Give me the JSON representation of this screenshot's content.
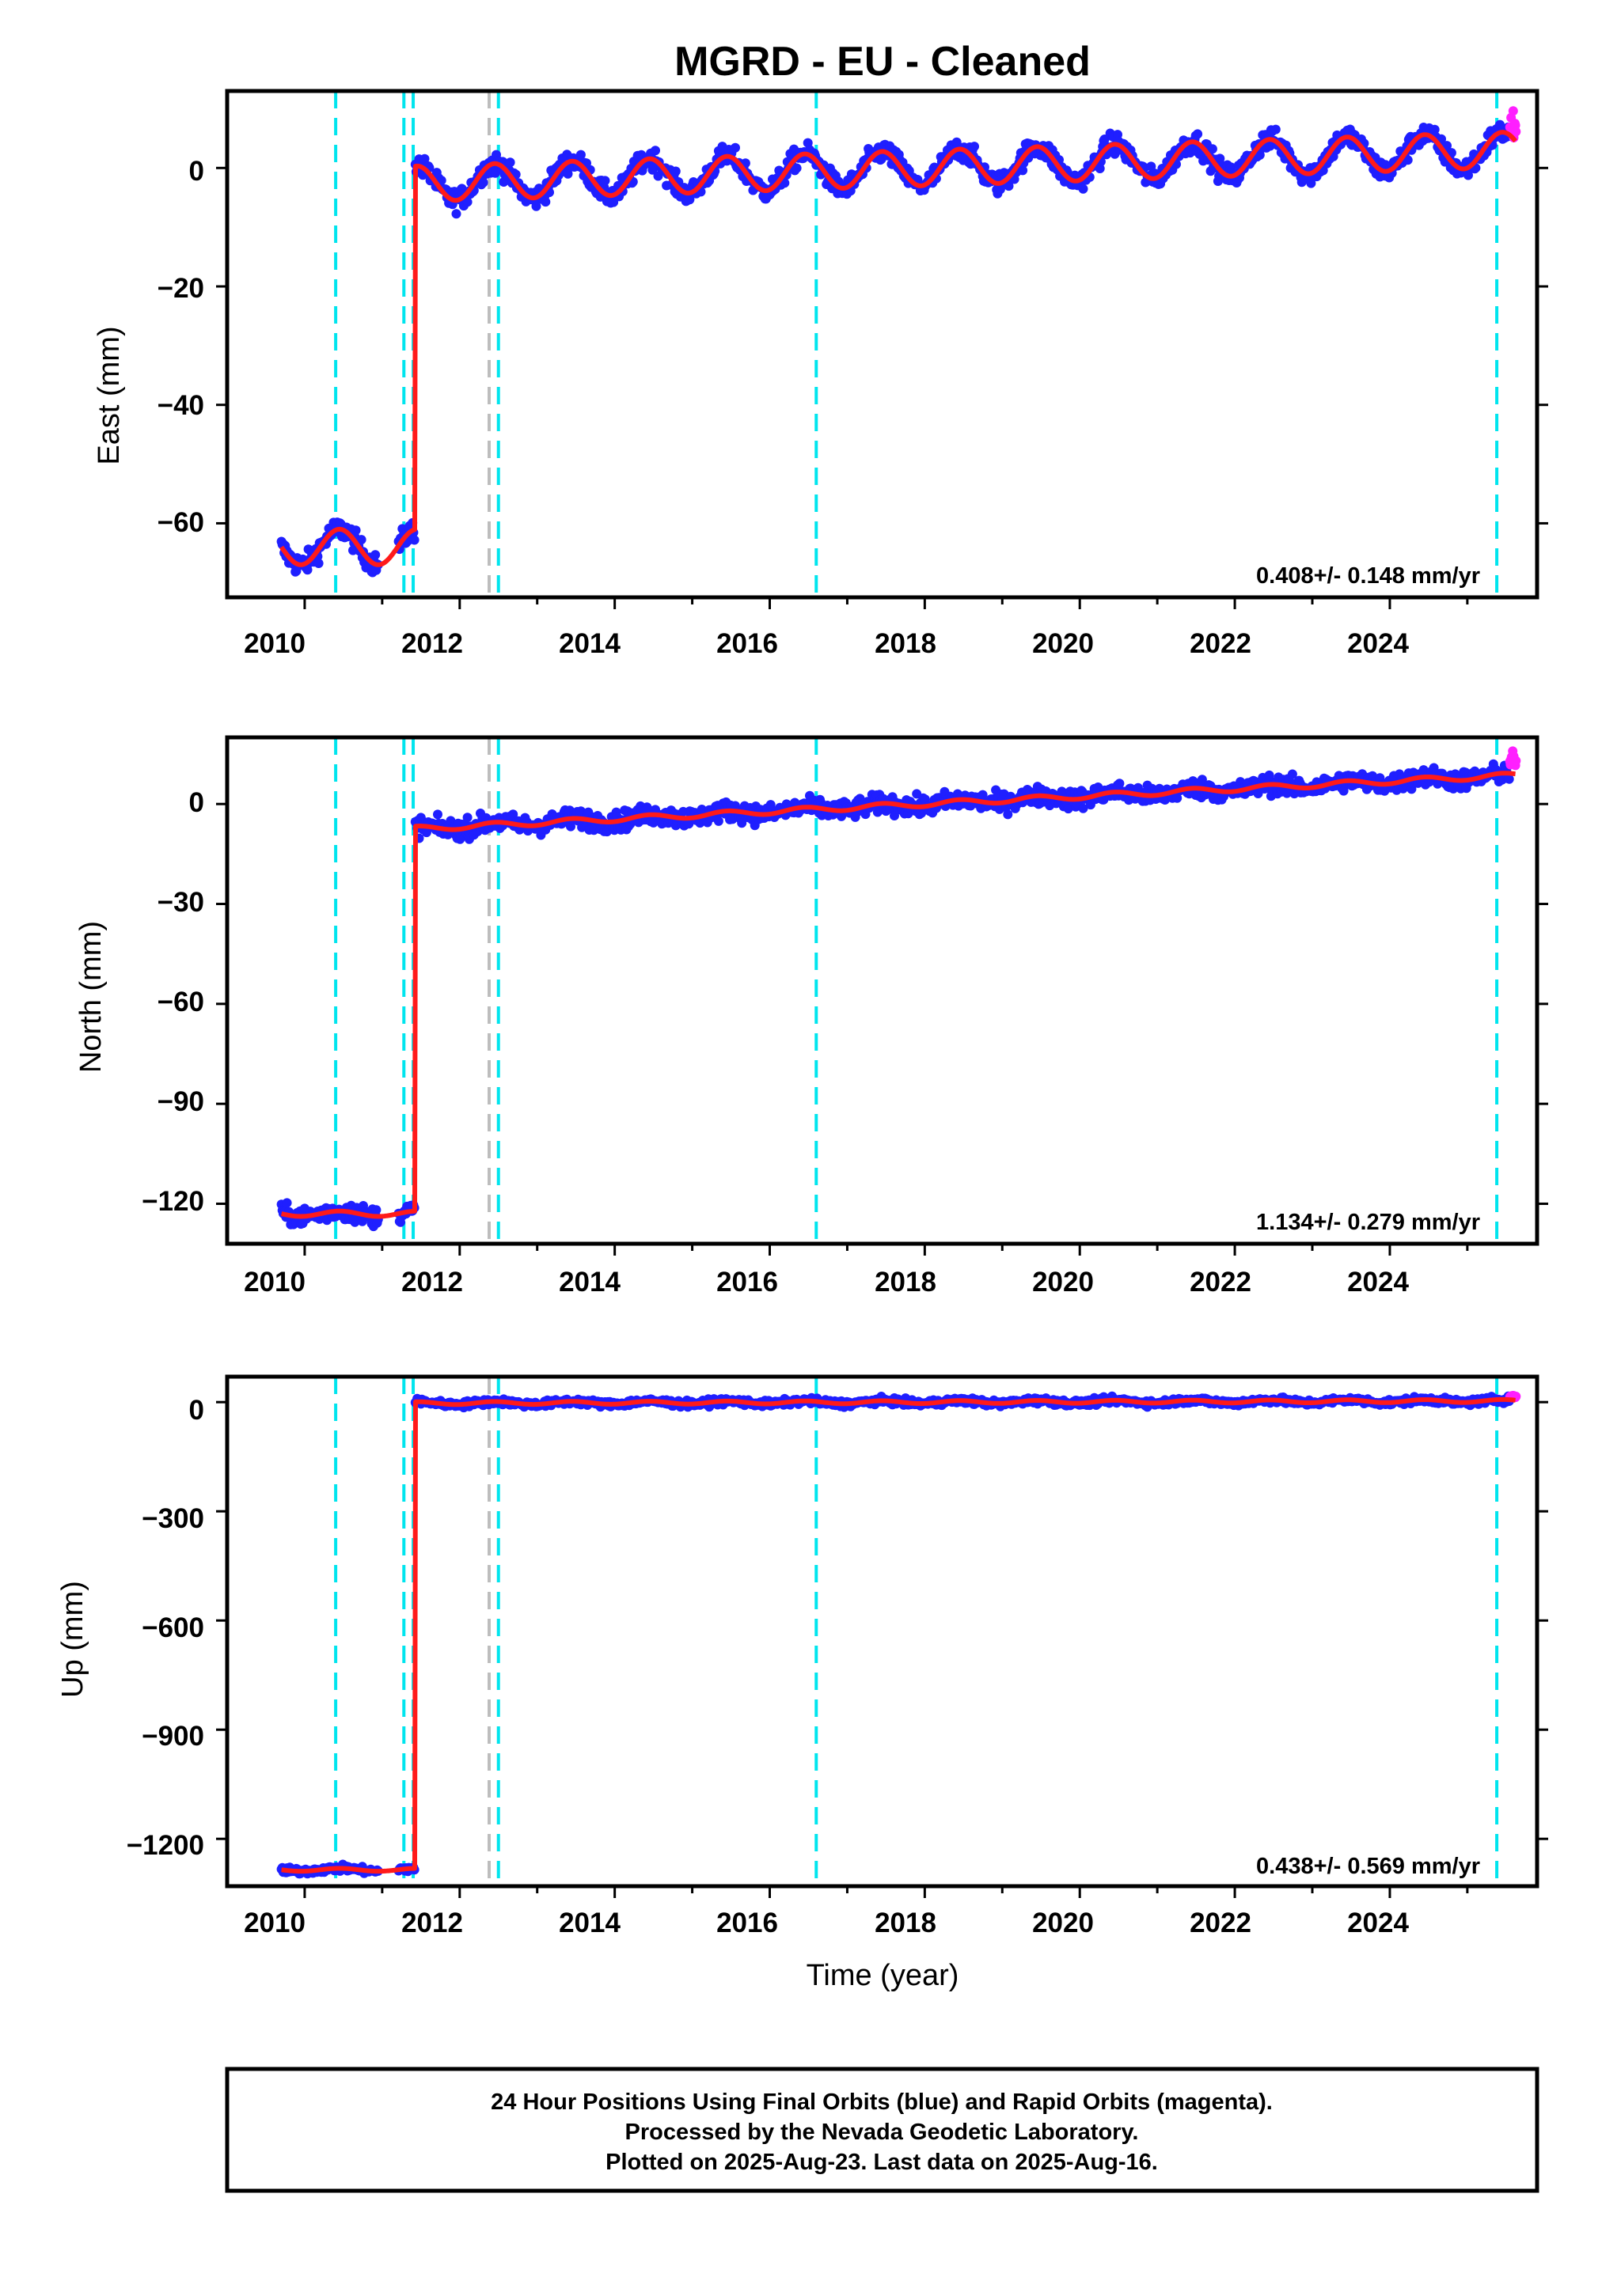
{
  "title": "MGRD  - EU - Cleaned",
  "colors": {
    "final_orbits": "#1f1fff",
    "rapid_orbits": "#ff1fff",
    "model": "#ff1a1a",
    "equipment_change": "#00e5ee",
    "other_event": "#bdbdbd",
    "frame": "#000000"
  },
  "xaxis": {
    "label": "Time (year)",
    "range": [
      2009.0,
      2025.9
    ],
    "ticks": [
      2010,
      2012,
      2014,
      2016,
      2018,
      2020,
      2022,
      2024
    ],
    "tick_labels": [
      "2010",
      "2012",
      "2014",
      "2016",
      "2018",
      "2020",
      "2022",
      "2024"
    ]
  },
  "chart_data": [
    {
      "type": "scatter",
      "id": "east",
      "ylabel": "East (mm)",
      "ylim": [
        -72.5,
        13
      ],
      "yticks": [
        0,
        -20,
        -40,
        -60
      ],
      "ytick_labels": [
        "0",
        "−20",
        "−40",
        "−60"
      ],
      "rate": "0.408+/- 0.148 mm/yr",
      "pre_offset": -64,
      "offset_step": 65,
      "seasonal_amplitude": 3,
      "trend_mm_per_yr": 0.408,
      "series": [
        {
          "name": "Final Orbits (blue)",
          "x_range": [
            2009.7,
            2025.55
          ],
          "noise_mm": 1.3
        },
        {
          "name": "Rapid Orbits (magenta)",
          "x_range": [
            2025.55,
            2025.63
          ],
          "values_around": 7
        }
      ]
    },
    {
      "type": "scatter",
      "id": "north",
      "ylabel": "North (mm)",
      "ylim": [
        -132,
        20
      ],
      "yticks": [
        0,
        -30,
        -60,
        -90,
        -120
      ],
      "ytick_labels": [
        "0",
        "−30",
        "−60",
        "−90",
        "−120"
      ],
      "rate": "1.134+/- 0.279 mm/yr",
      "pre_offset": -123,
      "offset_step": 111,
      "seasonal_amplitude": 0.8,
      "trend_mm_per_yr": 1.134,
      "series": [
        {
          "name": "Final Orbits (blue)",
          "x_range": [
            2009.7,
            2025.55
          ],
          "noise_mm": 2
        },
        {
          "name": "Rapid Orbits (magenta)",
          "x_range": [
            2025.55,
            2025.63
          ],
          "values_around": 13
        }
      ]
    },
    {
      "type": "scatter",
      "id": "up",
      "ylabel": "Up (mm)",
      "ylim": [
        -1330,
        70
      ],
      "yticks": [
        0,
        -300,
        -600,
        -900,
        -1200
      ],
      "ytick_labels": [
        "0",
        "−300",
        "−600",
        "−900",
        "−1200"
      ],
      "rate": "0.438+/- 0.569 mm/yr",
      "pre_offset": -1285,
      "offset_step": 1285,
      "seasonal_amplitude": 4,
      "trend_mm_per_yr": 0.438,
      "series": [
        {
          "name": "Final Orbits (blue)",
          "x_range": [
            2009.7,
            2025.55
          ],
          "noise_mm": 6
        },
        {
          "name": "Rapid Orbits (magenta)",
          "x_range": [
            2025.55,
            2025.63
          ],
          "values_around": 15
        }
      ]
    }
  ],
  "events": {
    "equipment_changes": [
      2010.4,
      2011.28,
      2011.4,
      2012.5,
      2016.6,
      2025.38
    ],
    "other_events": [
      2012.38
    ],
    "offset_epoch": 2011.42
  },
  "footer": {
    "line1": "24 Hour Positions Using Final Orbits (blue) and Rapid Orbits (magenta).",
    "line2": "Processed by the Nevada Geodetic Laboratory.",
    "line3": "Plotted on 2025-Aug-23. Last data on 2025-Aug-16."
  }
}
